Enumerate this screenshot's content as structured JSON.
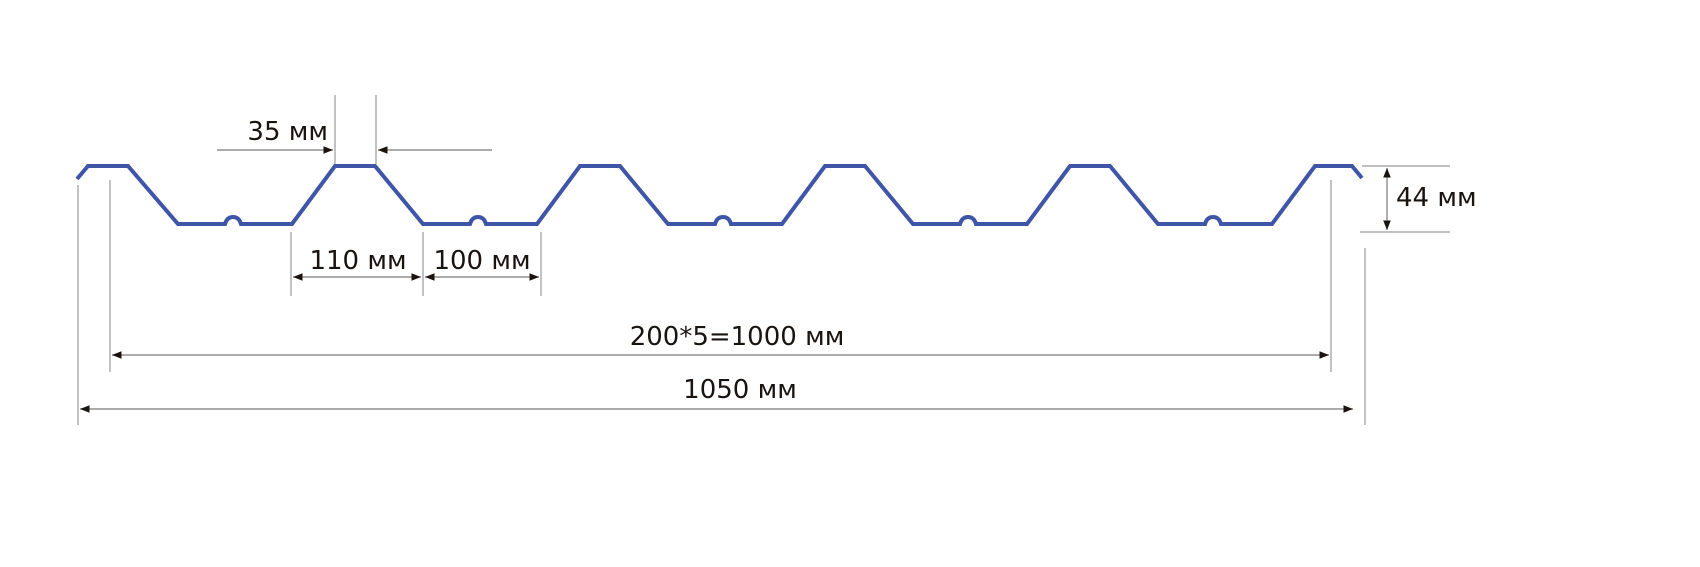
{
  "colors": {
    "profile": "#3f56a8",
    "dimension_lines": "#7a7a7a",
    "text": "#1a1410"
  },
  "labels": {
    "crest_width": "35 мм",
    "height": "44 мм",
    "slope_span": "110 мм",
    "trough_width": "100 мм",
    "useful_width": "200*5=1000 мм",
    "total_width": "1050 мм"
  }
}
